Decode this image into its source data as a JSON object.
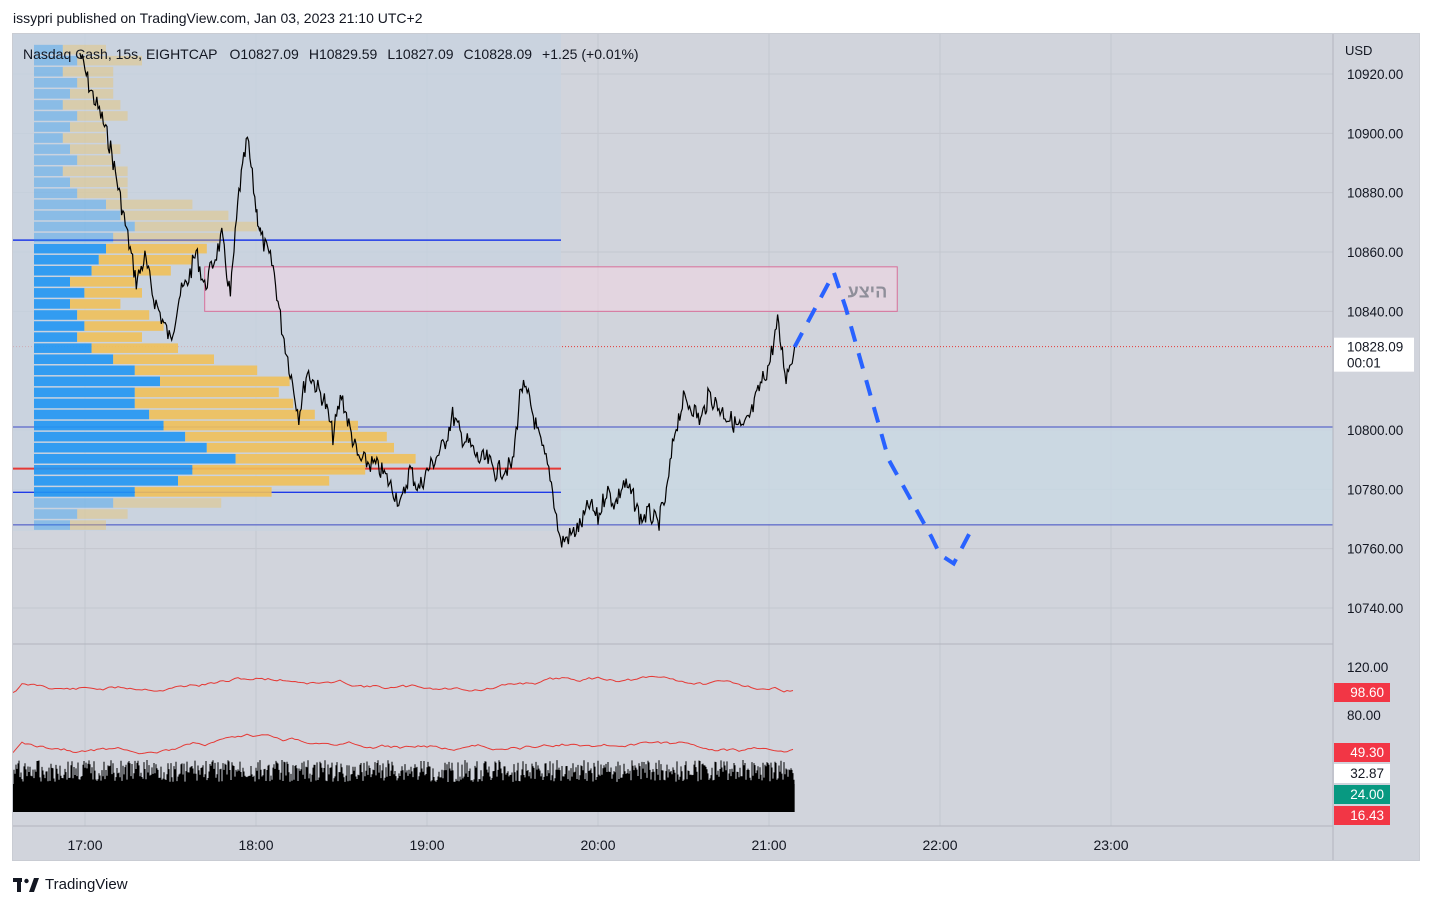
{
  "publisher_line": "issypri published on TradingView.com, Jan 03, 2023 21:10 UTC+2",
  "footer": {
    "brand": "TradingView",
    "logo_icon": "tradingview-logo-icon"
  },
  "header": {
    "symbol": "Nasdaq Cash, 15s, EIGHTCAP",
    "open": "O10827.09",
    "high": "H10829.59",
    "low": "L10827.09",
    "close": "C10828.09",
    "change": "+1.25 (+0.01%)"
  },
  "colors": {
    "background": "#d1d4dc",
    "price_line": "#000000",
    "projection": "#2962ff",
    "volume_profile_blue": "#2196f3",
    "volume_profile_yellow": "#f0c05a",
    "poc_line": "#e53935",
    "value_area_line": "#1e3ae8",
    "zone_fill": "#f3d5e4",
    "zone_border": "#d86f9a",
    "indicator_line": "#e53935",
    "volume_bars": "#000000"
  },
  "chart_data": {
    "type": "line",
    "title": "Nasdaq Cash, 15s, EIGHTCAP",
    "currency": "USD",
    "x_ticks": [
      "17:00",
      "18:00",
      "19:00",
      "20:00",
      "21:00",
      "22:00",
      "23:00"
    ],
    "y_ticks": [
      "10920.00",
      "10900.00",
      "10880.00",
      "10860.00",
      "10840.00",
      "10800.00",
      "10780.00",
      "10760.00",
      "10740.00"
    ],
    "ylim": [
      10735,
      10932
    ],
    "last_price": "10828.09",
    "countdown": "00:01",
    "price_series": {
      "name": "Nasdaq Cash",
      "x_hours": [
        16.97,
        17.03,
        17.1,
        17.15,
        17.2,
        17.25,
        17.3,
        17.35,
        17.4,
        17.5,
        17.55,
        17.6,
        17.65,
        17.7,
        17.8,
        17.85,
        17.9,
        17.95,
        18.0,
        18.03,
        18.1,
        18.15,
        18.2,
        18.25,
        18.3,
        18.4,
        18.45,
        18.5,
        18.55,
        18.6,
        18.7,
        18.75,
        18.85,
        18.9,
        18.95,
        19.0,
        19.1,
        19.15,
        19.2,
        19.25,
        19.3,
        19.35,
        19.4,
        19.5,
        19.55,
        19.6,
        19.65,
        19.72,
        19.78,
        19.85,
        19.9,
        19.95,
        20.0,
        20.05,
        20.1,
        20.15,
        20.2,
        20.25,
        20.3,
        20.35,
        20.4,
        20.45,
        20.5,
        20.55,
        20.6,
        20.65,
        20.7,
        20.75,
        20.8,
        20.85,
        20.9,
        20.95,
        21.0,
        21.05,
        21.1,
        21.15
      ],
      "values": [
        10927,
        10915,
        10905,
        10895,
        10880,
        10865,
        10850,
        10858,
        10845,
        10830,
        10845,
        10850,
        10860,
        10848,
        10865,
        10845,
        10880,
        10898,
        10875,
        10865,
        10855,
        10835,
        10820,
        10805,
        10820,
        10810,
        10798,
        10812,
        10800,
        10790,
        10788,
        10785,
        10775,
        10787,
        10780,
        10786,
        10795,
        10805,
        10798,
        10795,
        10790,
        10790,
        10786,
        10788,
        10815,
        10810,
        10798,
        10785,
        10762,
        10765,
        10768,
        10775,
        10770,
        10780,
        10775,
        10782,
        10778,
        10770,
        10772,
        10768,
        10778,
        10800,
        10810,
        10808,
        10803,
        10812,
        10808,
        10805,
        10802,
        10800,
        10806,
        10815,
        10822,
        10836,
        10818,
        10828
      ]
    },
    "projection": {
      "name": "projected path",
      "x_hours": [
        21.15,
        21.38,
        21.45,
        21.7,
        21.95,
        22.0,
        22.08,
        22.18
      ],
      "values": [
        10828,
        10853,
        10841,
        10790,
        10764,
        10758,
        10755,
        10766
      ]
    },
    "levels": [
      {
        "name": "value-area-high",
        "value": 10864,
        "kind": "profile"
      },
      {
        "name": "point-of-control",
        "value": 10787,
        "kind": "profile"
      },
      {
        "name": "value-area-low",
        "value": 10779,
        "kind": "profile"
      },
      {
        "name": "range-high",
        "value": 10801,
        "kind": "horizontal"
      },
      {
        "name": "range-low",
        "value": 10768,
        "kind": "horizontal"
      }
    ],
    "zone": {
      "label": "היצע",
      "from": 10840,
      "to": 10855,
      "x_start": 17.7,
      "x_end": 21.75
    },
    "volume_profile": {
      "price_range": [
        10766,
        10930
      ],
      "blue": [
        8,
        12,
        8,
        12,
        10,
        8,
        12,
        10,
        8,
        10,
        12,
        8,
        10,
        12,
        20,
        24,
        28,
        22,
        20,
        18,
        16,
        10,
        14,
        10,
        12,
        14,
        12,
        16,
        22,
        28,
        35,
        28,
        28,
        32,
        36,
        42,
        48,
        56,
        44,
        40,
        28,
        22,
        12,
        10
      ],
      "yellow": [
        12,
        18,
        14,
        10,
        12,
        16,
        14,
        10,
        12,
        14,
        10,
        18,
        16,
        14,
        24,
        30,
        34,
        30,
        28,
        26,
        22,
        18,
        16,
        14,
        20,
        22,
        18,
        24,
        28,
        34,
        36,
        40,
        44,
        46,
        54,
        56,
        52,
        50,
        48,
        42,
        38,
        30,
        14,
        10
      ]
    },
    "indicators": [
      {
        "name": "oscillator-upper",
        "ticks": [
          "120.00",
          "80.00"
        ],
        "last": "98.60",
        "last_color": "#f23645"
      },
      {
        "name": "oscillator-lower",
        "ticks": [
          "32.87"
        ],
        "badges": [
          {
            "value": "49.30",
            "color": "#f23645"
          },
          {
            "value": "32.87",
            "color": "#ffffff"
          },
          {
            "value": "24.00",
            "color": "#089981"
          },
          {
            "value": "16.43",
            "color": "#f23645"
          }
        ]
      }
    ]
  }
}
